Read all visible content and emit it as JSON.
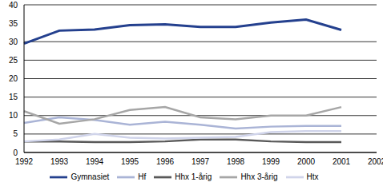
{
  "chart_data": {
    "type": "line",
    "categories": [
      "1992",
      "1993",
      "1994",
      "1995",
      "1996",
      "1997",
      "1998",
      "1999",
      "2000",
      "2001",
      "2002"
    ],
    "series": [
      {
        "name": "Gymnasiet",
        "color": "#24408e",
        "values": [
          29.5,
          33,
          33.3,
          34.5,
          34.7,
          34,
          34,
          35.2,
          36,
          33.2,
          null
        ]
      },
      {
        "name": "Hf",
        "color": "#aab4d6",
        "values": [
          8,
          9.5,
          8.8,
          7.5,
          8.3,
          7.5,
          6.5,
          7,
          7.2,
          7.2,
          null
        ]
      },
      {
        "name": "Hhx 3-årig",
        "color": "#a6a6a6",
        "values": [
          11.2,
          7.8,
          9,
          11.5,
          12.3,
          9.5,
          9,
          10,
          10,
          12.3,
          null
        ]
      },
      {
        "name": "Hhx 1-årig",
        "color": "#595959",
        "values": [
          3,
          3,
          2.8,
          2.8,
          3,
          3.5,
          3.5,
          3,
          2.8,
          2.8,
          null
        ]
      },
      {
        "name": "Htx",
        "color": "#d0d4ea",
        "values": [
          3,
          3.5,
          5,
          4,
          3.8,
          4,
          4.2,
          5.5,
          5.8,
          5.8,
          null
        ]
      }
    ],
    "ylim": [
      0,
      40
    ],
    "yticks": [
      0,
      5,
      10,
      15,
      20,
      25,
      30,
      35,
      40
    ],
    "grid": true,
    "legend": "bottom"
  }
}
